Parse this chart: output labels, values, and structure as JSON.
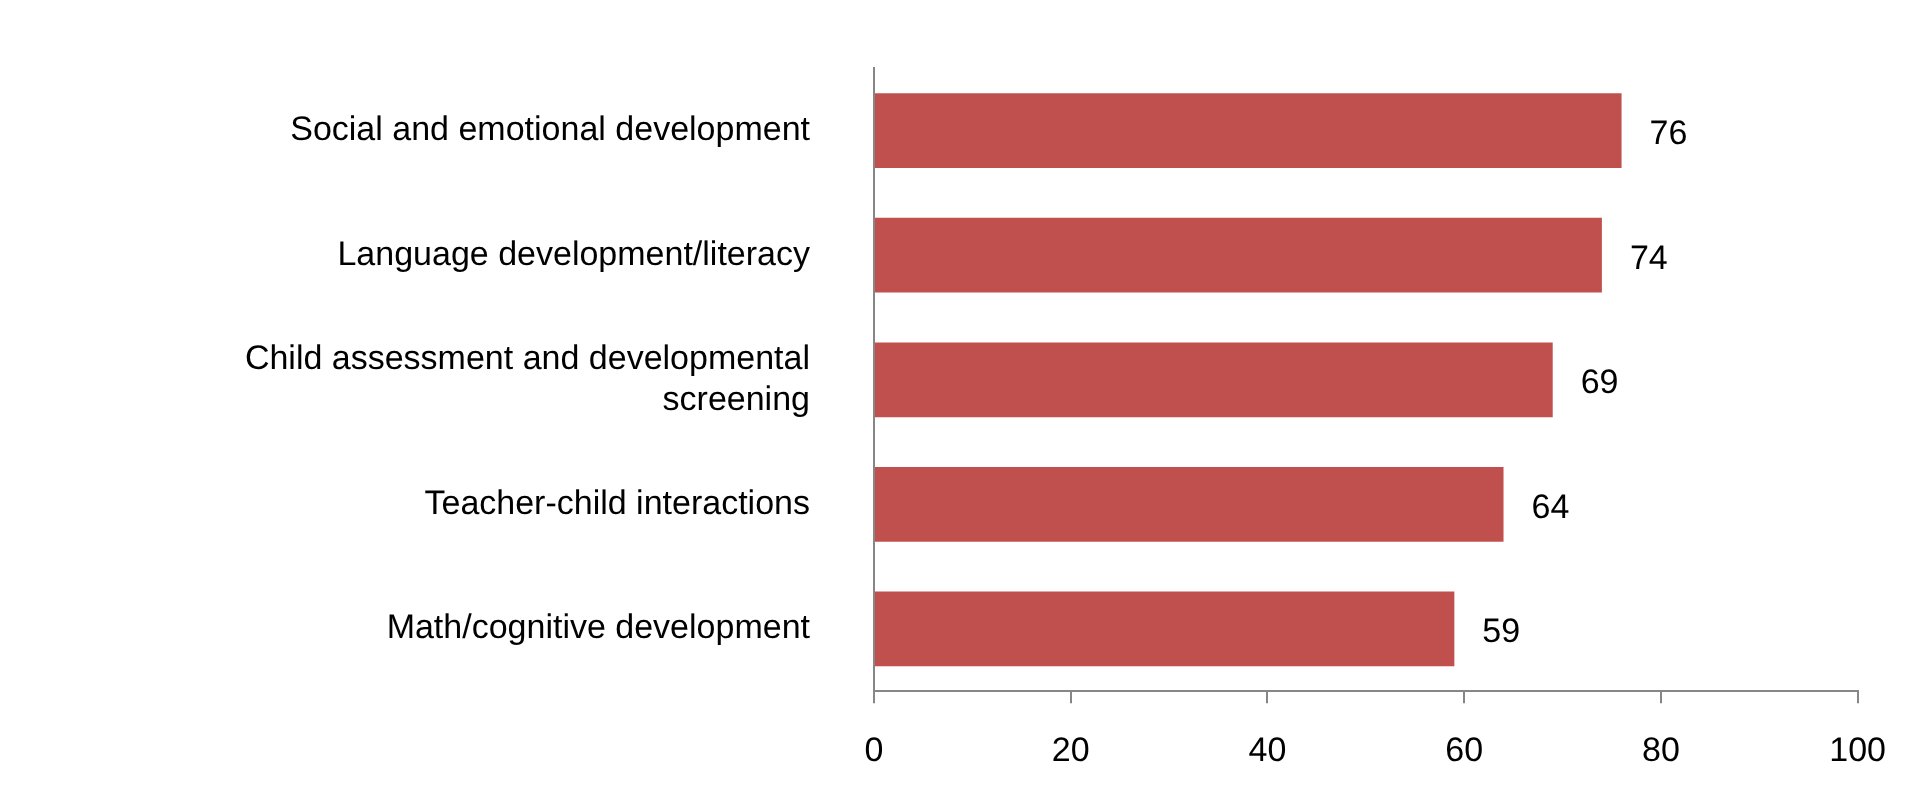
{
  "chart_data": {
    "type": "bar",
    "orientation": "horizontal",
    "categories": [
      "Social and emotional development",
      "Language development/literacy",
      "Child assessment and developmental screening",
      "Teacher-child interactions",
      "Math/cognitive development"
    ],
    "values": [
      76,
      74,
      69,
      64,
      59
    ],
    "color": "#c0504d",
    "xlim": [
      0,
      100
    ],
    "xticks": [
      0,
      20,
      40,
      60,
      80,
      100
    ],
    "grid": false,
    "legend": false,
    "data_labels": true
  }
}
